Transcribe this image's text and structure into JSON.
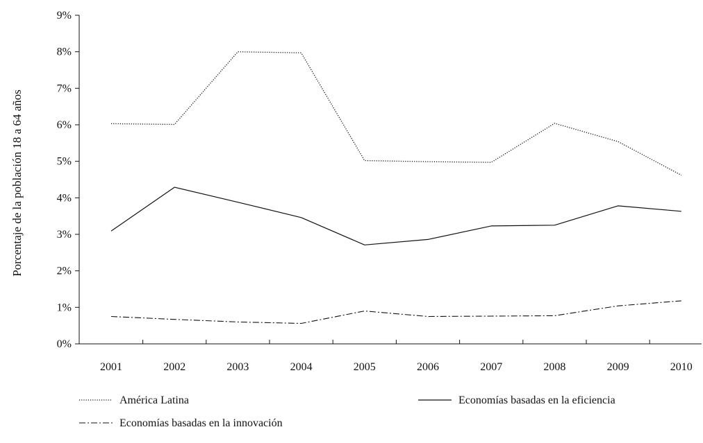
{
  "chart_data": {
    "type": "line",
    "title": "",
    "xlabel": "",
    "ylabel": "Porcentaje de la población 18 a 64 años",
    "categories": [
      "2001",
      "2002",
      "2003",
      "2004",
      "2005",
      "2006",
      "2007",
      "2008",
      "2009",
      "2010"
    ],
    "ylim": [
      0,
      9
    ],
    "yticks": [
      0,
      1,
      2,
      3,
      4,
      5,
      6,
      7,
      8,
      9
    ],
    "ytick_labels": [
      "0%",
      "1%",
      "2%",
      "3%",
      "4%",
      "5%",
      "6%",
      "7%",
      "8%",
      "9%"
    ],
    "grid": false,
    "legend_position": "bottom",
    "series": [
      {
        "name": "América Latina",
        "line_style": "dotted",
        "color": "#111111",
        "values": [
          6.03,
          6.01,
          8.0,
          7.97,
          5.02,
          4.99,
          4.97,
          6.04,
          5.54,
          4.62
        ]
      },
      {
        "name": "Economías basadas en la eficiencia",
        "line_style": "solid",
        "color": "#111111",
        "values": [
          3.09,
          4.29,
          3.88,
          3.46,
          2.71,
          2.86,
          3.23,
          3.25,
          3.78,
          3.63
        ]
      },
      {
        "name": "Economías basadas en la innovación",
        "line_style": "dash-dot",
        "color": "#111111",
        "values": [
          0.75,
          0.67,
          0.6,
          0.56,
          0.9,
          0.75,
          0.76,
          0.77,
          1.04,
          1.18
        ]
      }
    ]
  }
}
